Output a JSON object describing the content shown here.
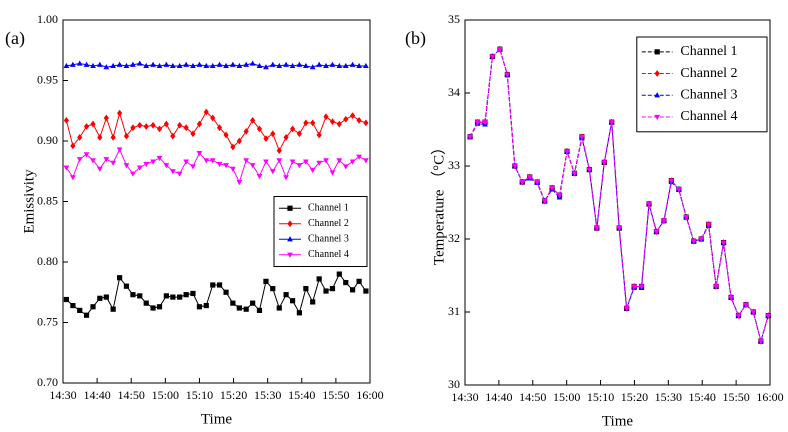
{
  "chart_data": [
    {
      "type": "line",
      "panel_label": "(a)",
      "xlabel": "Time",
      "ylabel": "Emissivity",
      "xlim": [
        0,
        90
      ],
      "xticks": [
        {
          "value": 0,
          "label": "14:30"
        },
        {
          "value": 10,
          "label": "14:40"
        },
        {
          "value": 20,
          "label": "14:50"
        },
        {
          "value": 30,
          "label": "15:00"
        },
        {
          "value": 40,
          "label": "15:10"
        },
        {
          "value": 50,
          "label": "15:20"
        },
        {
          "value": 60,
          "label": "15:30"
        },
        {
          "value": 70,
          "label": "15:40"
        },
        {
          "value": 80,
          "label": "15:50"
        },
        {
          "value": 90,
          "label": "16:00"
        }
      ],
      "ylim": [
        0.7,
        1.0
      ],
      "yticks": [
        {
          "value": 0.7,
          "label": "0.70"
        },
        {
          "value": 0.75,
          "label": "0.75"
        },
        {
          "value": 0.8,
          "label": "0.80"
        },
        {
          "value": 0.85,
          "label": "0.85"
        },
        {
          "value": 0.9,
          "label": "0.90"
        },
        {
          "value": 0.95,
          "label": "0.95"
        },
        {
          "value": 1.0,
          "label": "1.00"
        }
      ],
      "legend": "center right",
      "line_style": "solid",
      "x": [
        1,
        2.9,
        4.9,
        6.9,
        8.8,
        10.8,
        12.7,
        14.7,
        16.6,
        18.6,
        20.5,
        22.5,
        24.4,
        26.4,
        28.3,
        30.3,
        32.2,
        34.2,
        36.1,
        38.1,
        40,
        42,
        43.9,
        45.9,
        47.8,
        49.8,
        51.7,
        53.7,
        55.6,
        57.6,
        59.5,
        61.5,
        63.4,
        65.4,
        67.3,
        69.3,
        71.2,
        73.2,
        75.1,
        77.1,
        79,
        81,
        82.9,
        84.9,
        86.8,
        88.8
      ],
      "series": [
        {
          "name": "Channel 1",
          "color": "#000000",
          "marker": "square",
          "values": [
            0.769,
            0.764,
            0.76,
            0.756,
            0.763,
            0.77,
            0.771,
            0.761,
            0.787,
            0.78,
            0.773,
            0.772,
            0.766,
            0.762,
            0.763,
            0.772,
            0.771,
            0.771,
            0.773,
            0.774,
            0.763,
            0.764,
            0.781,
            0.781,
            0.775,
            0.766,
            0.762,
            0.761,
            0.766,
            0.76,
            0.784,
            0.778,
            0.762,
            0.773,
            0.768,
            0.758,
            0.778,
            0.767,
            0.786,
            0.776,
            0.778,
            0.79,
            0.783,
            0.777,
            0.784,
            0.776
          ]
        },
        {
          "name": "Channel 2",
          "color": "#ff0000",
          "marker": "diamond",
          "values": [
            0.917,
            0.896,
            0.903,
            0.912,
            0.914,
            0.903,
            0.919,
            0.903,
            0.923,
            0.904,
            0.911,
            0.913,
            0.912,
            0.913,
            0.91,
            0.914,
            0.904,
            0.913,
            0.911,
            0.906,
            0.914,
            0.924,
            0.919,
            0.911,
            0.905,
            0.895,
            0.9,
            0.908,
            0.917,
            0.91,
            0.902,
            0.906,
            0.892,
            0.903,
            0.91,
            0.906,
            0.915,
            0.915,
            0.905,
            0.92,
            0.916,
            0.914,
            0.918,
            0.921,
            0.917,
            0.915
          ]
        },
        {
          "name": "Channel 3",
          "color": "#0000ff",
          "marker": "triangle-up",
          "values": [
            0.962,
            0.963,
            0.964,
            0.963,
            0.962,
            0.963,
            0.961,
            0.962,
            0.963,
            0.962,
            0.963,
            0.964,
            0.962,
            0.963,
            0.962,
            0.963,
            0.962,
            0.962,
            0.963,
            0.962,
            0.963,
            0.962,
            0.962,
            0.963,
            0.962,
            0.963,
            0.962,
            0.963,
            0.964,
            0.962,
            0.961,
            0.963,
            0.962,
            0.963,
            0.962,
            0.963,
            0.962,
            0.961,
            0.963,
            0.962,
            0.963,
            0.962,
            0.962,
            0.963,
            0.962,
            0.962
          ]
        },
        {
          "name": "Channel 4",
          "color": "#ff00ff",
          "marker": "triangle-down",
          "values": [
            0.878,
            0.87,
            0.885,
            0.889,
            0.884,
            0.877,
            0.885,
            0.882,
            0.893,
            0.88,
            0.873,
            0.878,
            0.881,
            0.883,
            0.886,
            0.88,
            0.875,
            0.873,
            0.883,
            0.879,
            0.89,
            0.884,
            0.884,
            0.881,
            0.88,
            0.877,
            0.866,
            0.884,
            0.88,
            0.871,
            0.883,
            0.875,
            0.884,
            0.87,
            0.883,
            0.88,
            0.883,
            0.876,
            0.882,
            0.884,
            0.874,
            0.884,
            0.879,
            0.883,
            0.887,
            0.884
          ]
        }
      ]
    },
    {
      "type": "line",
      "panel_label": "(b)",
      "xlabel": "Time",
      "ylabel": "Temperature （°C）",
      "xlim": [
        0,
        90
      ],
      "xticks": [
        {
          "value": 0,
          "label": "14:30"
        },
        {
          "value": 10,
          "label": "14:40"
        },
        {
          "value": 20,
          "label": "14:50"
        },
        {
          "value": 30,
          "label": "15:00"
        },
        {
          "value": 40,
          "label": "15:10"
        },
        {
          "value": 50,
          "label": "15:20"
        },
        {
          "value": 60,
          "label": "15:30"
        },
        {
          "value": 70,
          "label": "15:40"
        },
        {
          "value": 80,
          "label": "15:50"
        },
        {
          "value": 90,
          "label": "16:00"
        }
      ],
      "ylim": [
        30,
        35
      ],
      "yticks": [
        30,
        31,
        32,
        33,
        34,
        35
      ],
      "legend": "upper right",
      "line_style": "dashed",
      "x": [
        1.5,
        3.7,
        5.9,
        8.1,
        10.3,
        12.5,
        14.7,
        16.9,
        19.1,
        21.3,
        23.5,
        25.7,
        27.9,
        30.1,
        32.3,
        34.5,
        36.7,
        38.9,
        41.1,
        43.3,
        45.5,
        47.7,
        49.9,
        52.1,
        54.3,
        56.5,
        58.7,
        60.9,
        63.1,
        65.3,
        67.5,
        69.7,
        71.9,
        74.1,
        76.3,
        78.5,
        80.7,
        82.9,
        85.1,
        87.3,
        89.5
      ],
      "series": [
        {
          "name": "Channel 1",
          "color": "#000000",
          "marker": "square",
          "values": [
            33.4,
            33.6,
            33.6,
            34.5,
            34.6,
            34.25,
            33.0,
            32.78,
            32.85,
            32.78,
            32.52,
            32.7,
            32.6,
            33.2,
            32.9,
            33.4,
            32.95,
            32.15,
            33.05,
            33.6,
            32.15,
            31.05,
            31.35,
            31.35,
            32.48,
            32.1,
            32.25,
            32.8,
            32.68,
            32.3,
            31.97,
            32.0,
            32.2,
            31.35,
            31.95,
            31.2,
            30.95,
            31.1,
            31.0,
            30.6,
            30.95
          ]
        },
        {
          "name": "Channel 2",
          "color": "#ff0000",
          "marker": "diamond",
          "values": [
            33.4,
            33.6,
            33.6,
            34.5,
            34.6,
            34.25,
            33.0,
            32.78,
            32.85,
            32.78,
            32.52,
            32.7,
            32.6,
            33.2,
            32.9,
            33.4,
            32.95,
            32.15,
            33.05,
            33.6,
            32.15,
            31.05,
            31.35,
            31.35,
            32.48,
            32.1,
            32.25,
            32.8,
            32.68,
            32.3,
            31.97,
            32.0,
            32.2,
            31.35,
            31.95,
            31.2,
            30.95,
            31.1,
            31.0,
            30.6,
            30.95
          ]
        },
        {
          "name": "Channel 3",
          "color": "#0000ff",
          "marker": "triangle-up",
          "values": [
            33.4,
            33.58,
            33.57,
            34.5,
            34.6,
            34.25,
            33.0,
            32.78,
            32.83,
            32.77,
            32.52,
            32.68,
            32.57,
            33.2,
            32.9,
            33.38,
            32.95,
            32.15,
            33.05,
            33.6,
            32.15,
            31.05,
            31.33,
            31.33,
            32.48,
            32.1,
            32.25,
            32.78,
            32.68,
            32.3,
            31.97,
            32.0,
            32.18,
            31.35,
            31.95,
            31.2,
            30.95,
            31.1,
            31.0,
            30.6,
            30.95
          ]
        },
        {
          "name": "Channel 4",
          "color": "#ff00ff",
          "marker": "triangle-down",
          "values": [
            33.4,
            33.6,
            33.6,
            34.5,
            34.6,
            34.25,
            33.0,
            32.78,
            32.85,
            32.78,
            32.52,
            32.7,
            32.6,
            33.2,
            32.9,
            33.4,
            32.95,
            32.15,
            33.05,
            33.6,
            32.15,
            31.05,
            31.35,
            31.35,
            32.48,
            32.1,
            32.25,
            32.8,
            32.68,
            32.3,
            31.97,
            32.0,
            32.2,
            31.35,
            31.95,
            31.2,
            30.95,
            31.1,
            31.0,
            30.6,
            30.95
          ]
        }
      ]
    }
  ]
}
